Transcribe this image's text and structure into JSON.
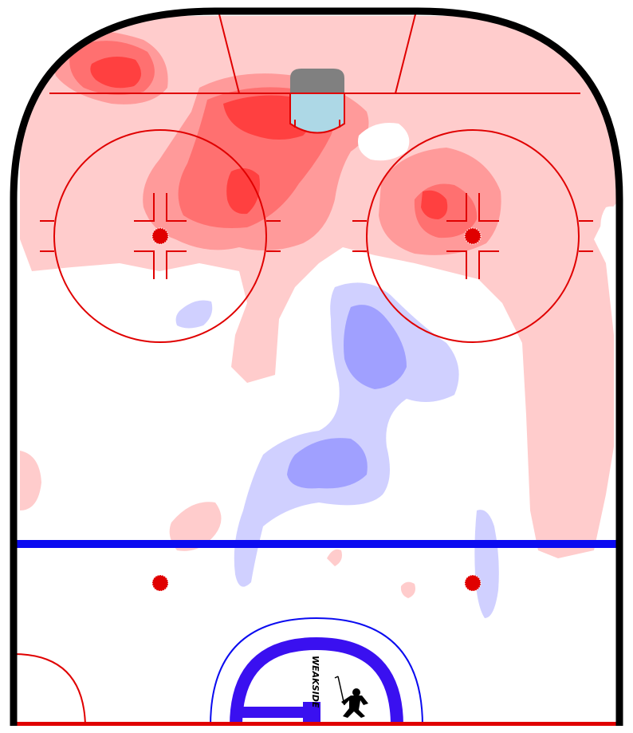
{
  "logo_text": "WEAKSIDE",
  "colors": {
    "boards": "#000000",
    "red_line": "#e00000",
    "blue_line": "#0b0bf0",
    "crease": "#add8e6",
    "net": "#808080",
    "heat_hot": "#ff3a3a",
    "heat_warm": "#ff8a8a",
    "heat_light": "#ffcccc",
    "heat_cold": "#a0a0ff",
    "heat_cool": "#d0d0ff",
    "logo_ring": "#3a10f0"
  },
  "icons": {
    "logo_player": "hockey-player-silhouette"
  }
}
